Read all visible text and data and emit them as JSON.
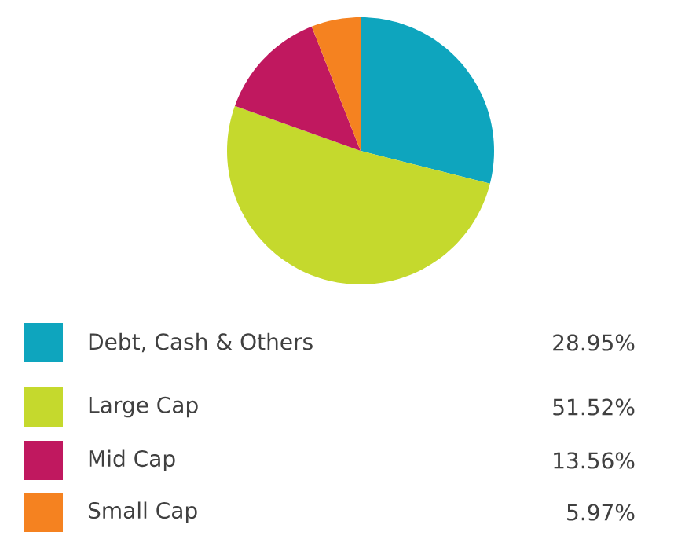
{
  "chart_data": {
    "type": "pie",
    "categories": [
      "Debt, Cash & Others",
      "Large Cap",
      "Mid Cap",
      "Small Cap"
    ],
    "values": [
      28.95,
      51.52,
      13.56,
      5.97
    ],
    "colors": [
      "#0ea5be",
      "#c5d92d",
      "#c0185f",
      "#f58220"
    ],
    "value_labels": [
      "28.95%",
      "51.52%",
      "13.56%",
      "5.97%"
    ],
    "legend": "bottom"
  }
}
